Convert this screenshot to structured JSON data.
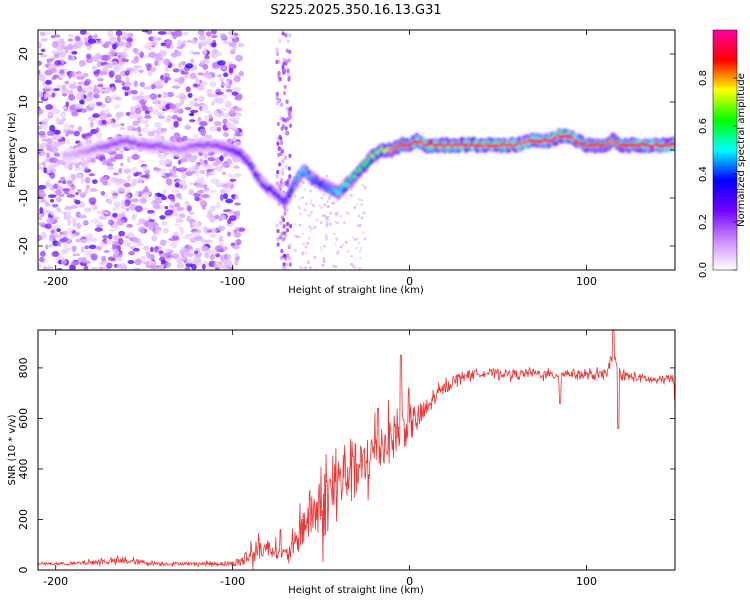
{
  "title": "S225.2025.350.16.13.G31",
  "chart_data": [
    {
      "type": "heatmap",
      "name": "spectrogram",
      "xlabel": "Height of straight line (km)",
      "ylabel": "Frequency (Hz)",
      "xlim": [
        -210,
        150
      ],
      "ylim": [
        -25,
        25
      ],
      "xticks": [
        -200,
        -100,
        0,
        100
      ],
      "yticks": [
        -20,
        -10,
        0,
        10,
        20
      ],
      "ridge": {
        "x": [
          -190,
          -180,
          -170,
          -160,
          -150,
          -140,
          -130,
          -120,
          -110,
          -100,
          -95,
          -90,
          -85,
          -80,
          -75,
          -70,
          -65,
          -60,
          -55,
          -50,
          -45,
          -40,
          -35,
          -30,
          -25,
          -20,
          -15,
          -10,
          -5,
          0,
          5,
          10,
          20,
          30,
          40,
          50,
          60,
          70,
          80,
          85,
          90,
          95,
          100,
          110,
          115,
          120,
          130,
          140,
          150
        ],
        "y": [
          -1,
          0,
          1,
          2,
          1,
          1,
          0,
          1,
          1,
          0,
          -1,
          -3,
          -6,
          -8,
          -9,
          -11,
          -7,
          -4,
          -6,
          -7,
          -8,
          -9,
          -7,
          -5,
          -3,
          -1,
          0,
          0,
          1,
          1,
          2,
          1,
          1,
          1,
          1,
          1,
          1,
          2,
          2,
          3,
          3,
          2,
          1,
          1,
          2,
          1,
          1,
          1,
          1
        ],
        "amp": [
          0.1,
          0.15,
          0.2,
          0.2,
          0.2,
          0.2,
          0.15,
          0.2,
          0.2,
          0.25,
          0.3,
          0.3,
          0.3,
          0.3,
          0.3,
          0.3,
          0.45,
          0.5,
          0.45,
          0.4,
          0.45,
          0.5,
          0.55,
          0.6,
          0.65,
          0.7,
          0.7,
          0.8,
          0.85,
          0.85,
          0.9,
          0.95,
          0.95,
          0.95,
          0.95,
          0.95,
          0.95,
          0.9,
          0.95,
          1.0,
          0.95,
          0.9,
          0.85,
          0.85,
          0.8,
          0.85,
          0.9,
          0.9,
          0.9
        ]
      },
      "colorbar": {
        "label": "Normalized spectral amplitude",
        "range": [
          0,
          1
        ],
        "ticks": [
          "0.0",
          "0.2",
          "0.4",
          "0.6",
          "0.8"
        ],
        "colors": [
          "#ffffff",
          "#cc88ff",
          "#7000ff",
          "#0000ff",
          "#00ffff",
          "#00ff00",
          "#ffff00",
          "#ff0000",
          "#ff00a0"
        ]
      }
    },
    {
      "type": "line",
      "name": "snr",
      "xlabel": "Height of straight line (km)",
      "ylabel": "SNR (10 * v/v)",
      "xlim": [
        -210,
        150
      ],
      "ylim": [
        0,
        950
      ],
      "xticks": [
        -200,
        -100,
        0,
        100
      ],
      "yticks": [
        0,
        200,
        400,
        600,
        800
      ],
      "color": "#ee3333",
      "series": [
        {
          "name": "SNR",
          "x": [
            -210,
            -200,
            -190,
            -180,
            -170,
            -160,
            -150,
            -140,
            -130,
            -120,
            -110,
            -100,
            -95,
            -90,
            -85,
            -80,
            -75,
            -70,
            -65,
            -60,
            -55,
            -50,
            -45,
            -40,
            -35,
            -30,
            -25,
            -20,
            -15,
            -10,
            -5,
            0,
            5,
            10,
            15,
            20,
            25,
            30,
            40,
            50,
            60,
            70,
            80,
            90,
            100,
            110,
            115,
            120,
            130,
            140,
            150
          ],
          "values": [
            25,
            25,
            25,
            30,
            35,
            35,
            30,
            25,
            25,
            25,
            25,
            25,
            35,
            60,
            80,
            90,
            75,
            60,
            95,
            180,
            230,
            240,
            300,
            340,
            400,
            380,
            410,
            480,
            500,
            520,
            560,
            580,
            600,
            640,
            690,
            720,
            750,
            770,
            780,
            780,
            775,
            780,
            770,
            780,
            770,
            770,
            830,
            770,
            760,
            750,
            760
          ],
          "noise": [
            5,
            5,
            6,
            10,
            12,
            12,
            10,
            8,
            6,
            6,
            8,
            10,
            25,
            45,
            40,
            35,
            30,
            25,
            50,
            90,
            110,
            140,
            140,
            150,
            140,
            120,
            110,
            100,
            100,
            90,
            90,
            80,
            60,
            40,
            25,
            25,
            20,
            18,
            16,
            16,
            18,
            18,
            18,
            18,
            18,
            20,
            20,
            20,
            18,
            18,
            18
          ],
          "spikes": [
            [
              -73,
              160
            ],
            [
              -5,
              850
            ],
            [
              -32,
              450
            ],
            [
              -18,
              640
            ],
            [
              115,
              950
            ],
            [
              118,
              560
            ],
            [
              85,
              660
            ],
            [
              150,
              670
            ]
          ]
        }
      ]
    }
  ]
}
